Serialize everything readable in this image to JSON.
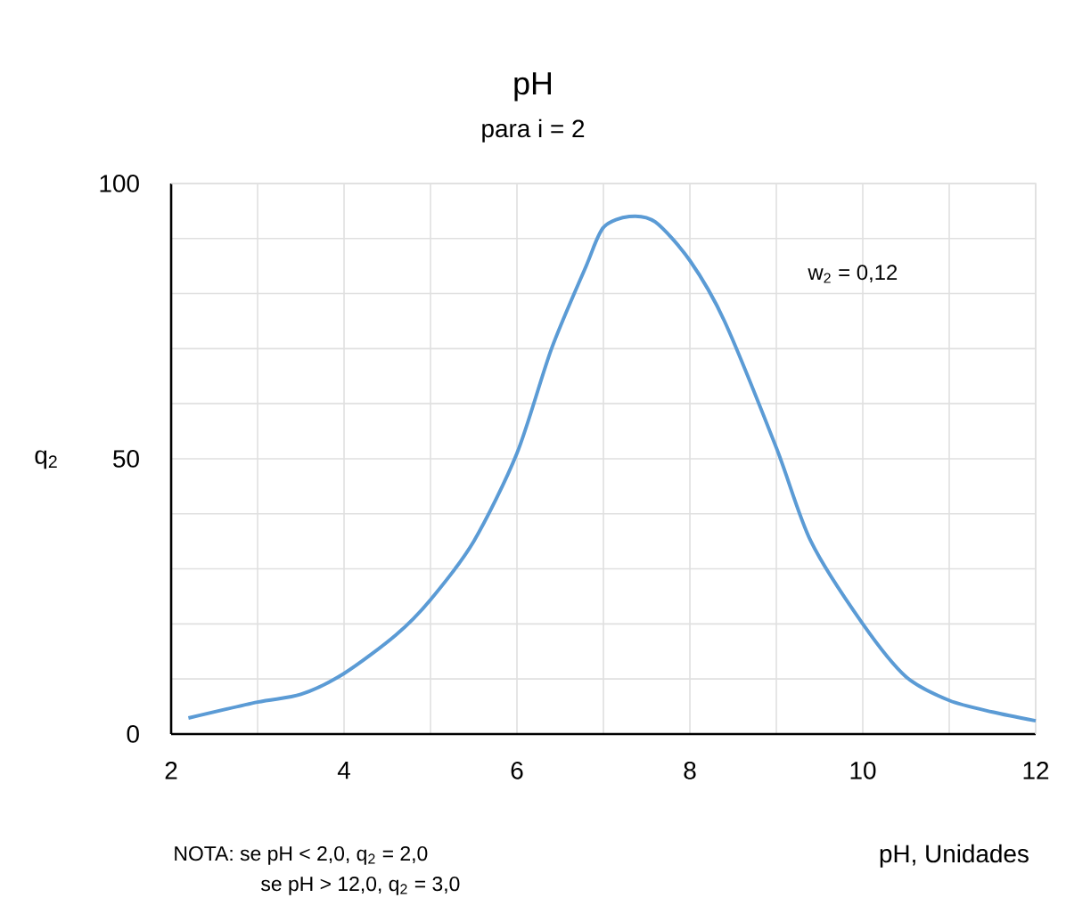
{
  "chart_data": {
    "type": "line",
    "title": "pH",
    "subtitle": "para i = 2",
    "xlabel": "pH, Unidades",
    "ylabel": "q$_{2}$",
    "annotations": [
      "w$_{2}$ = 0,12",
      "NOTA: se pH < 2,0,   q$_{2}$ = 2,0",
      "se pH > 12,0, q$_{2}$ = 3,0"
    ],
    "x": [
      2.2,
      3.0,
      3.5,
      4.0,
      4.6,
      5.0,
      5.5,
      6.0,
      6.4,
      6.8,
      7.0,
      7.3,
      7.6,
      8.0,
      8.4,
      9.0,
      9.4,
      10.0,
      10.5,
      11.0,
      11.5,
      12.0
    ],
    "series": [
      {
        "color": "#5b9bd5",
        "values": [
          2.9,
          5.8,
          7.2,
          11,
          18,
          24.4,
          35,
          51,
          70,
          85,
          92,
          94,
          93,
          86,
          75,
          52,
          35,
          20,
          10.4,
          6.1,
          4,
          2.4
        ]
      }
    ],
    "xlim": [
      2,
      12
    ],
    "ylim": [
      0,
      100
    ],
    "xticks": [
      2,
      {
        "value": 3,
        "label": null
      },
      4,
      {
        "value": 5,
        "label": null
      },
      6,
      {
        "value": 7,
        "label": null
      },
      8,
      {
        "value": 9,
        "label": null
      },
      10,
      {
        "value": 11,
        "label": null
      },
      12
    ],
    "yticks": [
      0,
      {
        "value": 10,
        "label": null
      },
      {
        "value": 20,
        "label": null
      },
      {
        "value": 30,
        "label": null
      },
      {
        "value": 40,
        "label": null
      },
      50,
      {
        "value": 60,
        "label": null
      },
      {
        "value": 70,
        "label": null
      },
      {
        "value": 80,
        "label": null
      },
      {
        "value": 90,
        "label": null
      },
      100
    ],
    "grid": true,
    "marker": "none"
  }
}
